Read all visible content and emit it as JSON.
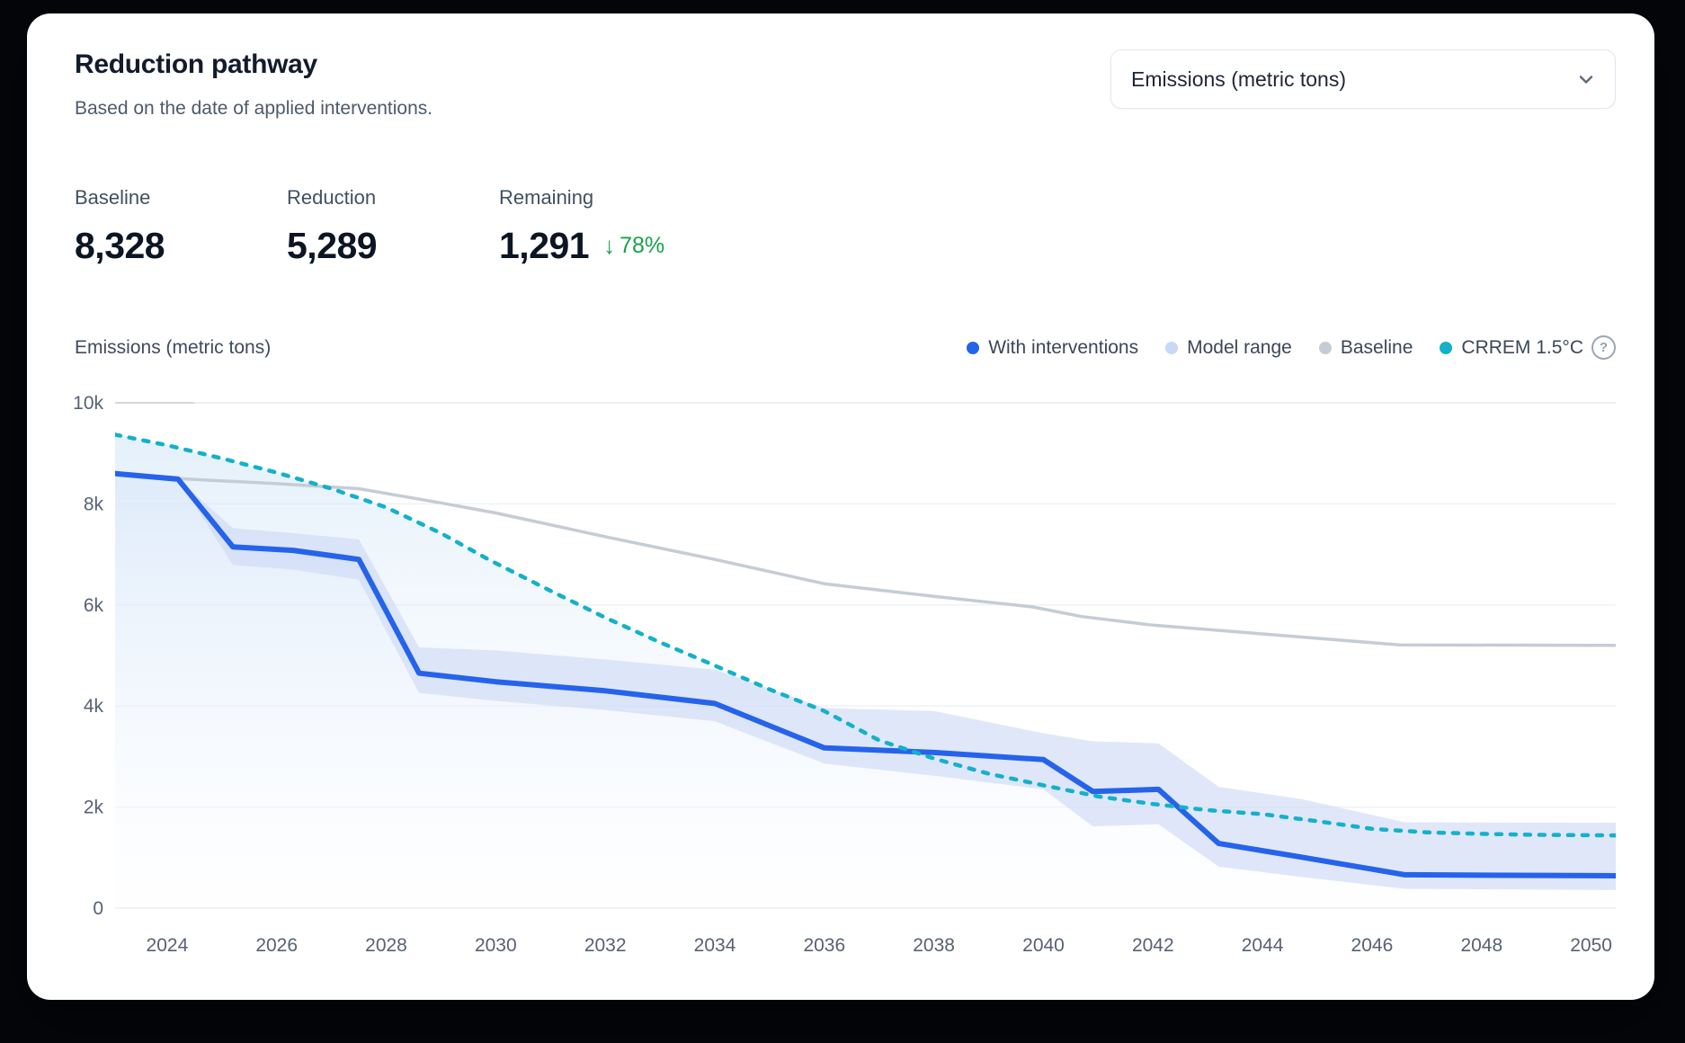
{
  "card": {
    "title": "Reduction pathway",
    "subtitle": "Based on the date of applied interventions.",
    "unit_selector": {
      "value": "Emissions (metric tons)"
    },
    "stats": [
      {
        "label": "Baseline",
        "value": "8,328"
      },
      {
        "label": "Reduction",
        "value": "5,289"
      },
      {
        "label": "Remaining",
        "value": "1,291",
        "delta_arrow": "↓",
        "delta": "78%"
      }
    ],
    "axis_title": "Emissions (metric tons)",
    "legend": [
      {
        "label": "With interventions",
        "color": "#2563eb"
      },
      {
        "label": "Model range",
        "color": "#c9d8f7"
      },
      {
        "label": "Baseline",
        "color": "#c6ccd6"
      },
      {
        "label": "CRREM 1.5°C",
        "color": "#14b1c9"
      }
    ],
    "help_icon": "?"
  },
  "chart_data": {
    "type": "line",
    "title": "Reduction pathway",
    "ylabel": "Emissions (metric tons)",
    "ylim": [
      0,
      10000
    ],
    "xlim": [
      2023.05,
      2050.45
    ],
    "grid": "horizontal",
    "legend_position": "top-right",
    "yticks": [
      {
        "v": 10000,
        "label": "10k"
      },
      {
        "v": 8000,
        "label": "8k"
      },
      {
        "v": 6000,
        "label": "6k"
      },
      {
        "v": 4000,
        "label": "4k"
      },
      {
        "v": 2000,
        "label": "2k"
      },
      {
        "v": 0,
        "label": "0"
      }
    ],
    "xticks": [
      2024,
      2026,
      2028,
      2030,
      2032,
      2034,
      2036,
      2038,
      2040,
      2042,
      2044,
      2046,
      2048,
      2050
    ],
    "series": [
      {
        "name": "With interventions",
        "type": "line",
        "color": "#2563eb",
        "width": 6,
        "area": true,
        "points": [
          [
            2023.05,
            8600
          ],
          [
            2024.2,
            8490
          ],
          [
            2025.2,
            7150
          ],
          [
            2026.3,
            7080
          ],
          [
            2027.5,
            6900
          ],
          [
            2028.6,
            4650
          ],
          [
            2030,
            4480
          ],
          [
            2032,
            4300
          ],
          [
            2034,
            4050
          ],
          [
            2036,
            3170
          ],
          [
            2038,
            3080
          ],
          [
            2040,
            2940
          ],
          [
            2040.9,
            2310
          ],
          [
            2042.1,
            2350
          ],
          [
            2043.2,
            1280
          ],
          [
            2044.7,
            1010
          ],
          [
            2046.6,
            660
          ],
          [
            2050.45,
            640
          ]
        ]
      },
      {
        "name": "Model range",
        "type": "band",
        "color": "#cdd9f6",
        "upper": [
          [
            2024.2,
            8490
          ],
          [
            2025.2,
            7520
          ],
          [
            2026.3,
            7420
          ],
          [
            2027.5,
            7300
          ],
          [
            2028.6,
            5160
          ],
          [
            2030,
            5100
          ],
          [
            2032,
            4920
          ],
          [
            2034,
            4720
          ],
          [
            2036,
            3960
          ],
          [
            2038,
            3900
          ],
          [
            2040,
            3460
          ],
          [
            2040.9,
            3300
          ],
          [
            2042.1,
            3260
          ],
          [
            2043.2,
            2400
          ],
          [
            2044.7,
            2160
          ],
          [
            2046.6,
            1700
          ],
          [
            2050.45,
            1690
          ]
        ],
        "lower": [
          [
            2024.2,
            8490
          ],
          [
            2025.2,
            6790
          ],
          [
            2026.3,
            6700
          ],
          [
            2027.5,
            6500
          ],
          [
            2028.6,
            4260
          ],
          [
            2030,
            4100
          ],
          [
            2032,
            3920
          ],
          [
            2034,
            3700
          ],
          [
            2036,
            2860
          ],
          [
            2038,
            2620
          ],
          [
            2040,
            2350
          ],
          [
            2040.9,
            1620
          ],
          [
            2042.1,
            1660
          ],
          [
            2043.2,
            820
          ],
          [
            2044.7,
            620
          ],
          [
            2046.6,
            380
          ],
          [
            2050.45,
            360
          ]
        ]
      },
      {
        "name": "Baseline",
        "type": "line",
        "color": "#c6ccd6",
        "width": 3.5,
        "points": [
          [
            2024.2,
            8500
          ],
          [
            2026,
            8400
          ],
          [
            2027.5,
            8300
          ],
          [
            2029,
            8020
          ],
          [
            2030,
            7820
          ],
          [
            2032,
            7350
          ],
          [
            2034,
            6900
          ],
          [
            2036,
            6420
          ],
          [
            2038,
            6170
          ],
          [
            2039.8,
            5960
          ],
          [
            2040.7,
            5770
          ],
          [
            2042,
            5600
          ],
          [
            2044.2,
            5410
          ],
          [
            2046.5,
            5210
          ],
          [
            2050.45,
            5200
          ]
        ]
      },
      {
        "name": "CRREM 1.5°C",
        "type": "line",
        "color": "#14b1c9",
        "width": 4.5,
        "dashed": true,
        "area": true,
        "points": [
          [
            2023.05,
            9370
          ],
          [
            2024,
            9160
          ],
          [
            2025,
            8900
          ],
          [
            2026,
            8620
          ],
          [
            2027,
            8300
          ],
          [
            2028,
            7930
          ],
          [
            2029,
            7420
          ],
          [
            2029.9,
            6880
          ],
          [
            2031,
            6280
          ],
          [
            2032,
            5750
          ],
          [
            2033,
            5260
          ],
          [
            2034,
            4800
          ],
          [
            2035,
            4330
          ],
          [
            2036,
            3900
          ],
          [
            2037,
            3320
          ],
          [
            2038,
            2960
          ],
          [
            2039,
            2660
          ],
          [
            2040,
            2430
          ],
          [
            2041,
            2210
          ],
          [
            2042,
            2060
          ],
          [
            2043,
            1940
          ],
          [
            2044,
            1860
          ],
          [
            2045,
            1720
          ],
          [
            2046,
            1570
          ],
          [
            2047,
            1500
          ],
          [
            2048,
            1470
          ],
          [
            2049,
            1450
          ],
          [
            2050.45,
            1440
          ]
        ]
      }
    ]
  }
}
